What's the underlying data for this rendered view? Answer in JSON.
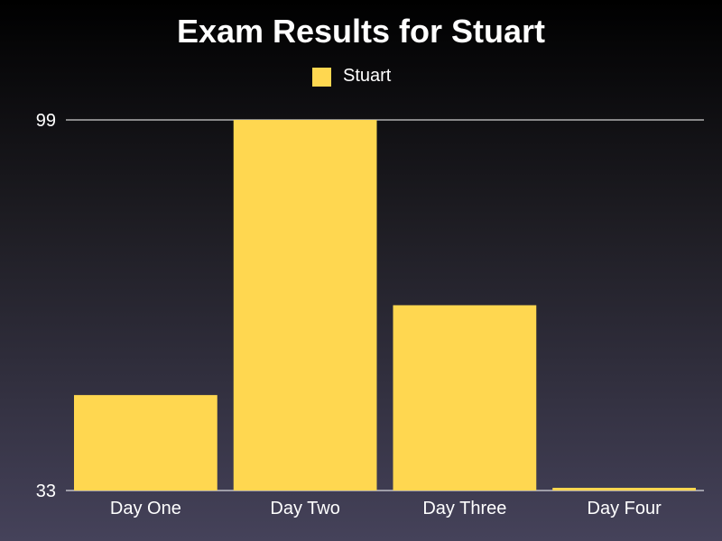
{
  "chart_data": {
    "type": "bar",
    "title": "Exam Results for Stuart",
    "categories": [
      "Day One",
      "Day Two",
      "Day Three",
      "Day Four"
    ],
    "series": [
      {
        "name": "Stuart",
        "values": [
          50,
          99,
          66,
          33
        ],
        "color": "#ffd750"
      }
    ],
    "ylim": [
      33,
      99
    ],
    "yticks": [
      33,
      99
    ],
    "grid": true,
    "legend": "top-center",
    "xlabel": "",
    "ylabel": ""
  }
}
